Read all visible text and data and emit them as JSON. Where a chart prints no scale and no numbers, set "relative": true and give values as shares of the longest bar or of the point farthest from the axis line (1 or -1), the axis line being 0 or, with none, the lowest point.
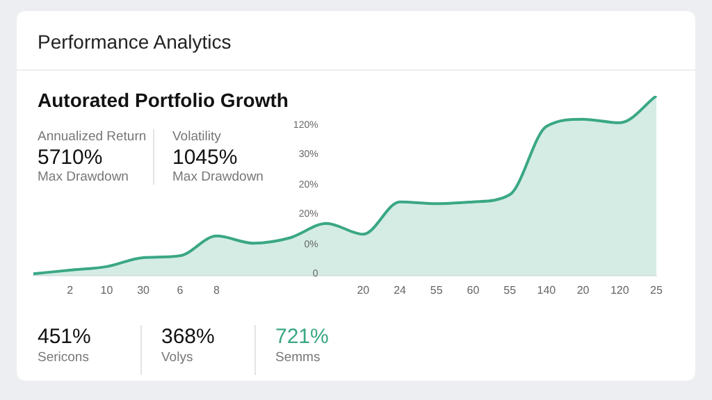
{
  "chart_data": {
    "type": "area",
    "title": "Performance Analytics",
    "subtitle": "Autorated Portfolio Growth",
    "annotations": [
      "Annualized Return",
      "5710%",
      "Max Drawdown",
      "Volatility",
      "1045%",
      "Max Drawdown",
      "451%",
      "Sericons",
      "368%",
      "Volys",
      "721%",
      "Semms",
      "0",
      "0%",
      "20%",
      "20%",
      "30%",
      "120%"
    ],
    "relative": true,
    "categories": [
      null,
      "2",
      "10",
      "30",
      "6",
      "8",
      null,
      null,
      null,
      "20",
      "24",
      "55",
      "60",
      "55",
      "140",
      "20",
      "120",
      "25"
    ],
    "values": [
      0.01,
      0.03,
      0.05,
      0.1,
      0.11,
      0.22,
      0.18,
      0.21,
      0.29,
      0.23,
      0.41,
      0.4,
      0.41,
      0.45,
      0.83,
      0.87,
      0.85,
      1
    ],
    "color": "#3aa785",
    "marker": "none"
  }
}
